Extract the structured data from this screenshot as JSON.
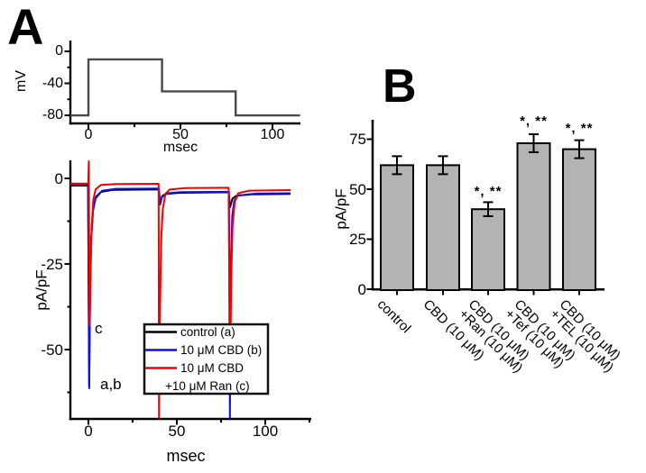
{
  "figure": {
    "background": "#ffffff"
  },
  "panel_a": {
    "panel_label": "A",
    "voltage_plot": {
      "ylabel": "mV",
      "xlabel": "msec",
      "yticks": [
        "0",
        "-40",
        "-80"
      ],
      "xticks": [
        "0",
        "50",
        "100"
      ],
      "line_color": "#4a4a4a",
      "chart_data": {
        "type": "line",
        "title": "voltage step protocol",
        "x_msec": [
          -10,
          0,
          0,
          40,
          40,
          80,
          80,
          115
        ],
        "y_mV": [
          -80,
          -80,
          -10,
          -10,
          -50,
          -50,
          -80,
          -80
        ],
        "xlim": [
          -10,
          118
        ],
        "ylim": [
          -90,
          8
        ],
        "grid": false
      }
    },
    "current_plot": {
      "ylabel": "pA/pF",
      "xlabel": "msec",
      "yticks": [
        "0",
        "-25",
        "-50"
      ],
      "xticks": [
        "0",
        "50",
        "100"
      ],
      "annotation_c": "c",
      "annotation_ab": "a,b",
      "legend": [
        {
          "label": "control (a)",
          "color": "#000000"
        },
        {
          "label": "10 μM CBD (b)",
          "color": "#0d0dee"
        },
        {
          "label": "10 μM CBD",
          "color": "#f40000"
        },
        {
          "label": "+10 μM Ran (c)",
          "color": ""
        }
      ],
      "chart_data": {
        "type": "line",
        "xlim": [
          -10,
          126
        ],
        "ylim": [
          -70,
          5
        ],
        "pulse_onsets_msec": [
          0,
          40,
          80
        ],
        "grid": false,
        "series": [
          {
            "name": "control (a)",
            "color": "#000000",
            "peak_pA_pF": -61,
            "steady_state_pA_pF": -3
          },
          {
            "name": "10 μM CBD (b)",
            "color": "#0d0dee",
            "peak_pA_pF": -61,
            "steady_state_pA_pF": -3
          },
          {
            "name": "10 μM CBD +10 μM Ran (c)",
            "color": "#f40000",
            "peak_pA_pF": -43,
            "steady_state_pA_pF": -1.5
          }
        ]
      }
    }
  },
  "panel_b": {
    "panel_label": "B",
    "ylabel": "pA/pF",
    "yticks": [
      "0",
      "25",
      "50",
      "75"
    ],
    "chart_data": {
      "type": "bar",
      "title": "",
      "ylabel": "pA/pF",
      "ylim": [
        0,
        85
      ],
      "grid": false,
      "categories": [
        "control",
        "CBD (10 μM)",
        "CBD (10 μM) +Ran (10 μM)",
        "CBD (10 μM) +Tef (10 μM)",
        "CBD (10 μM) +TEL (10 μM)"
      ],
      "category_lines": [
        [
          "control"
        ],
        [
          "CBD (10 μM)"
        ],
        [
          "CBD (10 μM)",
          "+Ran (10 μM)"
        ],
        [
          "CBD (10 μM)",
          "+Tef (10 μM)"
        ],
        [
          "CBD (10 μM)",
          "+TEL (10 μM)"
        ]
      ],
      "values": [
        62,
        62,
        40,
        73,
        70
      ],
      "errors": [
        4.5,
        4.5,
        3.5,
        4.5,
        4.5
      ],
      "significance": [
        "",
        "",
        "*, **",
        "*, **",
        "*, **"
      ],
      "bar_fill": "#b3b3b3",
      "bar_stroke": "#000000"
    }
  }
}
